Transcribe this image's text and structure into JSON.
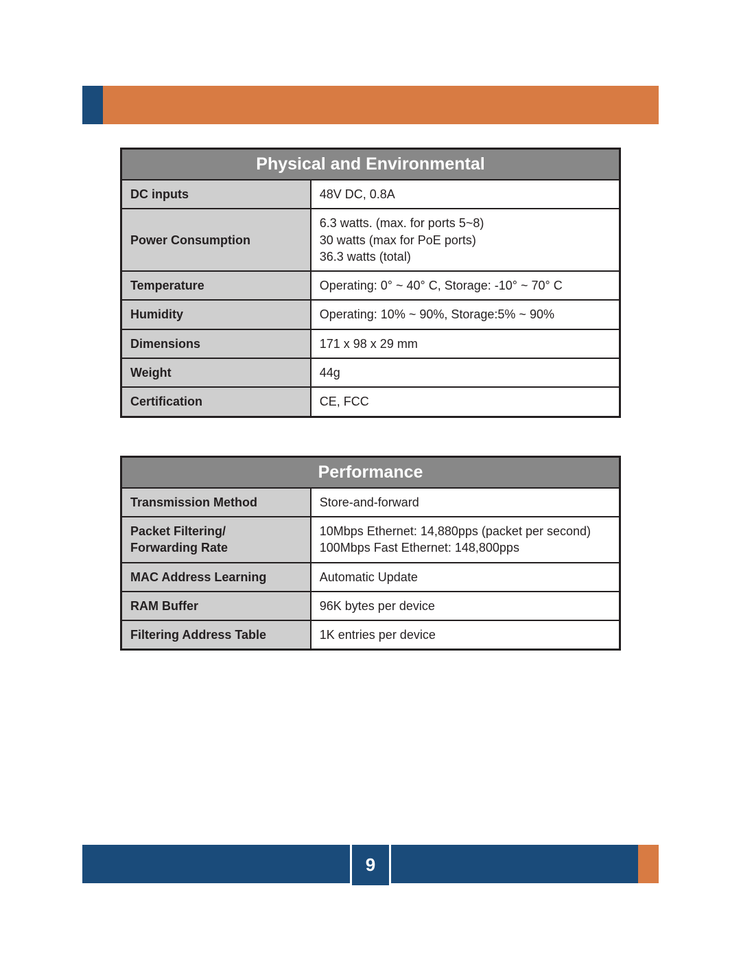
{
  "page_number": "9",
  "colors": {
    "orange": "#d87b43",
    "blue": "#1a4b7a",
    "header_gray": "#888888",
    "label_gray": "#cfcfcf",
    "border": "#231f20"
  },
  "tables": [
    {
      "title": "Physical and Environmental",
      "rows": [
        {
          "label": "DC inputs",
          "value": "48V DC, 0.8A"
        },
        {
          "label": "Power Consumption",
          "value": "6.3 watts. (max. for ports 5~8)\n30 watts (max for PoE ports)\n36.3 watts (total)"
        },
        {
          "label": "Temperature",
          "value": "Operating: 0° ~ 40° C, Storage: -10° ~ 70° C"
        },
        {
          "label": "Humidity",
          "value": "Operating: 10% ~ 90%, Storage:5% ~ 90%"
        },
        {
          "label": "Dimensions",
          "value": "171 x 98 x 29 mm"
        },
        {
          "label": "Weight",
          "value": "44g"
        },
        {
          "label": "Certification",
          "value": "CE, FCC"
        }
      ]
    },
    {
      "title": "Performance",
      "rows": [
        {
          "label": "Transmission Method",
          "value": "Store-and-forward"
        },
        {
          "label": "Packet Filtering/\nForwarding Rate",
          "value": "10Mbps Ethernet: 14,880pps (packet per second)\n100Mbps Fast Ethernet: 148,800pps"
        },
        {
          "label": "MAC Address Learning",
          "value": "Automatic Update"
        },
        {
          "label": "RAM Buffer",
          "value": "96K bytes per device"
        },
        {
          "label": "Filtering Address Table",
          "value": "1K entries per device"
        }
      ]
    }
  ]
}
